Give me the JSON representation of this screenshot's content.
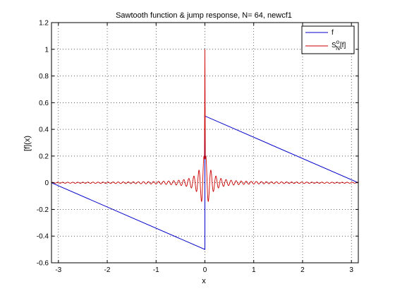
{
  "chart_data": {
    "type": "line",
    "title": "Sawtooth function & jump response, N= 64, newcf1",
    "xlabel": "x",
    "ylabel": "[f](x)",
    "xlim": [
      -3.14159,
      3.14159
    ],
    "ylim": [
      -0.6,
      1.2
    ],
    "xticks": [
      -3,
      -2,
      -1,
      0,
      1,
      2,
      3
    ],
    "yticks": [
      -0.6,
      -0.4,
      -0.2,
      0,
      0.2,
      0.4,
      0.6,
      0.8,
      1,
      1.2
    ],
    "xtick_labels": [
      "-3",
      "-2",
      "-1",
      "0",
      "1",
      "2",
      "3"
    ],
    "ytick_labels": [
      "-0.6",
      "-0.4",
      "-0.2",
      "0",
      "0.2",
      "0.4",
      "0.6",
      "0.8",
      "1",
      "1.2"
    ],
    "grid": true,
    "legend_position": "top-right",
    "series": [
      {
        "name": "f",
        "color": "#0000cc",
        "x": [
          -3.14159,
          0,
          0,
          3.14159
        ],
        "y": [
          0,
          -0.5,
          0.5,
          0
        ]
      },
      {
        "name": "S",
        "name_sup": "o",
        "name_sub": "N",
        "name_suffix": "[f]",
        "color": "#cc0000",
        "N": 64,
        "peak": 1.0,
        "x": [
          -3.14159,
          -1.0,
          -0.5,
          -0.2,
          -0.1,
          -0.05,
          0,
          0.05,
          0.1,
          0.2,
          0.5,
          1.0,
          3.14159
        ],
        "y": [
          0,
          0.005,
          0.01,
          0.02,
          0.13,
          -0.22,
          1.0,
          -0.22,
          0.13,
          0.02,
          0.01,
          0.005,
          0
        ]
      }
    ]
  }
}
